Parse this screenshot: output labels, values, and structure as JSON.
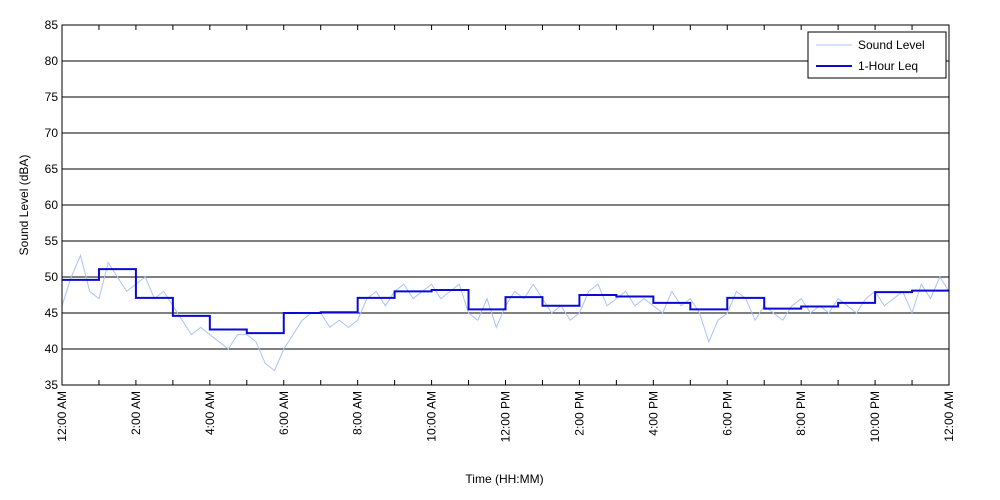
{
  "chart_data": {
    "type": "line",
    "title": "",
    "xlabel": "Time (HH:MM)",
    "ylabel": "Sound Level (dBA)",
    "xlim": [
      0,
      24
    ],
    "ylim": [
      35,
      85
    ],
    "x_unit": "hours after 12:00 AM",
    "yticks": [
      35,
      40,
      45,
      50,
      55,
      60,
      65,
      70,
      75,
      80,
      85
    ],
    "xticks": [
      {
        "hour": 0,
        "label": "12:00 AM"
      },
      {
        "hour": 2,
        "label": "2:00 AM"
      },
      {
        "hour": 4,
        "label": "4:00 AM"
      },
      {
        "hour": 6,
        "label": "6:00 AM"
      },
      {
        "hour": 8,
        "label": "8:00 AM"
      },
      {
        "hour": 10,
        "label": "10:00 AM"
      },
      {
        "hour": 12,
        "label": "12:00 PM"
      },
      {
        "hour": 14,
        "label": "2:00 PM"
      },
      {
        "hour": 16,
        "label": "4:00 PM"
      },
      {
        "hour": 18,
        "label": "6:00 PM"
      },
      {
        "hour": 20,
        "label": "8:00 PM"
      },
      {
        "hour": 22,
        "label": "10:00 PM"
      },
      {
        "hour": 24,
        "label": "12:00 AM"
      }
    ],
    "grid": {
      "horizontal": true,
      "vertical": false
    },
    "legend": {
      "position": "top-right"
    },
    "series": [
      {
        "name": "Sound Level",
        "color": "#a9c4f5",
        "style": "thin-line",
        "x": [
          0,
          0.25,
          0.5,
          0.75,
          1,
          1.25,
          1.5,
          1.75,
          2,
          2.25,
          2.5,
          2.75,
          3,
          3.25,
          3.5,
          3.75,
          4,
          4.25,
          4.5,
          4.75,
          5,
          5.25,
          5.5,
          5.75,
          6,
          6.25,
          6.5,
          6.75,
          7,
          7.25,
          7.5,
          7.75,
          8,
          8.25,
          8.5,
          8.75,
          9,
          9.25,
          9.5,
          9.75,
          10,
          10.25,
          10.5,
          10.75,
          11,
          11.25,
          11.5,
          11.75,
          12,
          12.25,
          12.5,
          12.75,
          13,
          13.25,
          13.5,
          13.75,
          14,
          14.25,
          14.5,
          14.75,
          15,
          15.25,
          15.5,
          15.75,
          16,
          16.25,
          16.5,
          16.75,
          17,
          17.25,
          17.5,
          17.75,
          18,
          18.25,
          18.5,
          18.75,
          19,
          19.25,
          19.5,
          19.75,
          20,
          20.25,
          20.5,
          20.75,
          21,
          21.25,
          21.5,
          21.75,
          22,
          22.25,
          22.5,
          22.75,
          23,
          23.25,
          23.5,
          23.75,
          24
        ],
        "values": [
          46,
          50,
          53,
          48,
          47,
          52,
          50,
          48,
          49,
          50,
          47,
          48,
          46,
          44,
          42,
          43,
          42,
          41,
          40,
          42,
          42,
          41,
          38,
          37,
          40,
          42,
          44,
          45,
          45,
          43,
          44,
          43,
          44,
          47,
          48,
          46,
          48,
          49,
          47,
          48,
          49,
          47,
          48,
          49,
          45,
          44,
          47,
          43,
          46,
          48,
          47,
          49,
          47,
          45,
          46,
          44,
          45,
          48,
          49,
          46,
          47,
          48,
          46,
          47,
          46,
          45,
          48,
          46,
          47,
          45,
          41,
          44,
          45,
          48,
          47,
          44,
          46,
          45,
          44,
          46,
          47,
          45,
          46,
          45,
          47,
          46,
          45,
          47,
          48,
          46,
          47,
          48,
          45,
          49,
          47,
          50,
          48
        ]
      },
      {
        "name": "1-Hour Leq",
        "color": "#0a0ad6",
        "style": "step",
        "hours": [
          0,
          1,
          2,
          3,
          4,
          5,
          6,
          7,
          8,
          9,
          10,
          11,
          12,
          13,
          14,
          15,
          16,
          17,
          18,
          19,
          20,
          21,
          22,
          23
        ],
        "values": [
          49.6,
          51.1,
          47.1,
          44.6,
          42.7,
          42.2,
          45.0,
          45.1,
          47.1,
          48.0,
          48.2,
          45.5,
          47.2,
          46.0,
          47.5,
          47.3,
          46.4,
          45.5,
          47.1,
          45.6,
          45.9,
          46.4,
          47.9,
          48.1
        ]
      }
    ]
  }
}
